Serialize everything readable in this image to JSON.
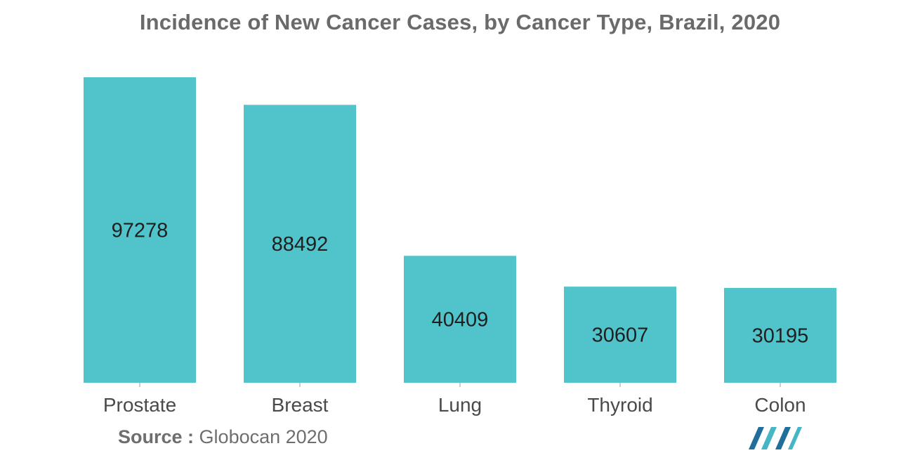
{
  "chart_data": {
    "type": "bar",
    "title": "Incidence of New Cancer Cases, by Cancer Type, Brazil, 2020",
    "categories": [
      "Prostate",
      "Breast",
      "Lung",
      "Thyroid",
      "Colon"
    ],
    "values": [
      97278,
      88492,
      40409,
      30607,
      30195
    ],
    "xlabel": "",
    "ylabel": "",
    "ylim": [
      0,
      97278
    ],
    "grid": false,
    "legend": "none",
    "bar_color": "#50c4ca",
    "label_color": "#1f1f1f",
    "axis_label_color": "#4a4a4a"
  },
  "source": {
    "label": "Source :",
    "text": "Globocan 2020"
  },
  "logo": {
    "icon": "mordor-intelligence-logo",
    "colors": [
      "#1f6f9a",
      "#45b6c4"
    ]
  }
}
